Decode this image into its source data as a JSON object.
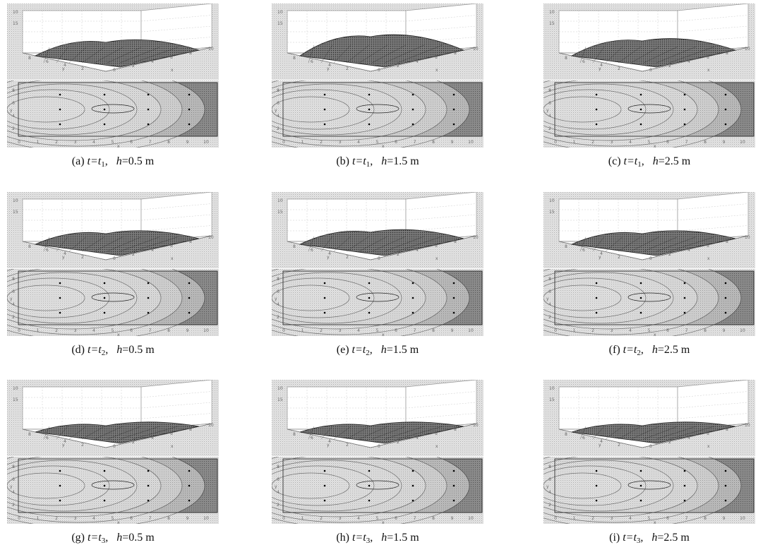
{
  "figure": {
    "panels": [
      {
        "id": "a",
        "letter": "(a)",
        "t_prefix": "t=t",
        "t_sub": "1",
        "sep": ",",
        "h_label": "h=0.5 m"
      },
      {
        "id": "b",
        "letter": "(b)",
        "t_prefix": "t=t",
        "t_sub": "1",
        "sep": ",",
        "h_label": "h=1.5 m"
      },
      {
        "id": "c",
        "letter": "(c)",
        "t_prefix": "t=t",
        "t_sub": "1",
        "sep": ",",
        "h_label": "h=2.5 m"
      },
      {
        "id": "d",
        "letter": "(d)",
        "t_prefix": "t=t",
        "t_sub": "2",
        "sep": ",",
        "h_label": "h=0.5 m"
      },
      {
        "id": "e",
        "letter": "(e)",
        "t_prefix": "t=t",
        "t_sub": "2",
        "sep": ",",
        "h_label": "h=1.5 m"
      },
      {
        "id": "f",
        "letter": "(f)",
        "t_prefix": "t=t",
        "t_sub": "2",
        "sep": ",",
        "h_label": "h=2.5 m"
      },
      {
        "id": "g",
        "letter": "(g)",
        "t_prefix": "t=t",
        "t_sub": "3",
        "sep": ",",
        "h_label": "h=0.5 m"
      },
      {
        "id": "h",
        "letter": "(h)",
        "t_prefix": "t=t",
        "t_sub": "3",
        "sep": ",",
        "h_label": "h=1.5 m"
      },
      {
        "id": "i",
        "letter": "(i)",
        "t_prefix": "t=t",
        "t_sub": "3",
        "sep": ",",
        "h_label": "h=2.5 m"
      }
    ],
    "x_ticks": [
      "0",
      "1",
      "2",
      "3",
      "4",
      "5",
      "6",
      "7",
      "8",
      "9",
      "10"
    ],
    "y_ticks": [
      "2",
      "4",
      "6",
      "8"
    ],
    "z_ticks": [
      "10",
      "15"
    ],
    "axis_letters": {
      "x": "x",
      "y": "y"
    }
  }
}
